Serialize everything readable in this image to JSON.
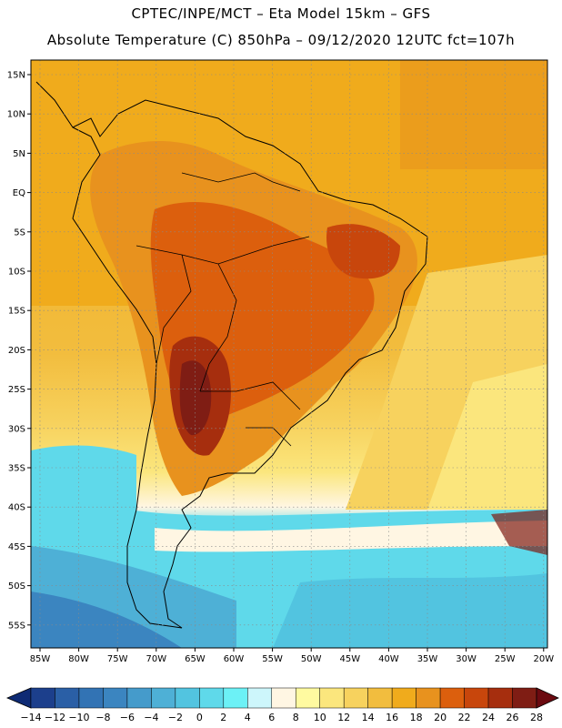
{
  "header": {
    "title_line1": "CPTEC/INPE/MCT –   Eta Model 15km – GFS",
    "title_line2": "Absolute Temperature (C) 850hPa – 09/12/2020 12UTC fct=107h"
  },
  "map": {
    "region": "South America",
    "variable": "Absolute Temperature (C) 850hPa",
    "lat_labels": [
      "15N",
      "10N",
      "5N",
      "EQ",
      "5S",
      "10S",
      "15S",
      "20S",
      "25S",
      "30S",
      "35S",
      "40S",
      "45S",
      "50S",
      "55S"
    ],
    "lon_labels": [
      "85W",
      "80W",
      "75W",
      "70W",
      "65W",
      "60W",
      "55W",
      "50W",
      "45W",
      "40W",
      "35W",
      "30W",
      "25W",
      "20W"
    ]
  },
  "colorbar": {
    "labels": [
      "−14",
      "−12",
      "−10",
      "−8",
      "−6",
      "−4",
      "−2",
      "0",
      "2",
      "4",
      "6",
      "8",
      "10",
      "12",
      "14",
      "16",
      "18",
      "20",
      "22",
      "24",
      "26",
      "28"
    ],
    "colors": [
      "#1c3f8c",
      "#2a5fa6",
      "#3273b4",
      "#3b85c0",
      "#459bcb",
      "#4eb0d6",
      "#52c4e0",
      "#5fd9ea",
      "#6cf1f6",
      "#cdf6fb",
      "#fff6e3",
      "#fffaa0",
      "#fbe67d",
      "#f7d25e",
      "#f2bd3e",
      "#f0ab1c",
      "#e8921e",
      "#dc5f0d",
      "#c8460c",
      "#a62e0e",
      "#7f1d14"
    ],
    "min_color": "#0e2a74",
    "max_color": "#6b0a10"
  }
}
